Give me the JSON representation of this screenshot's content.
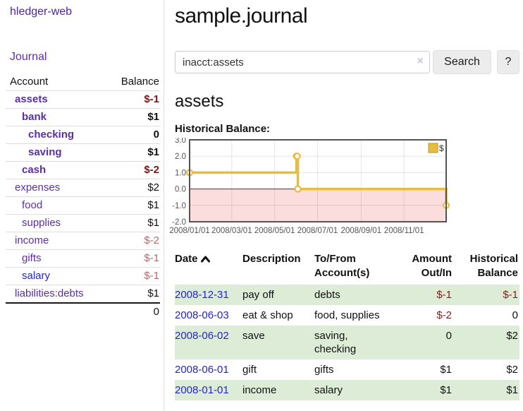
{
  "app": {
    "brand": "hledger-web"
  },
  "sidebar": {
    "journal_link": "Journal",
    "accounts_header": {
      "account": "Account",
      "balance": "Balance"
    },
    "accounts": [
      {
        "name": "assets",
        "balance": "$-1"
      },
      {
        "name": "bank",
        "balance": "$1"
      },
      {
        "name": "checking",
        "balance": "0"
      },
      {
        "name": "saving",
        "balance": "$1"
      },
      {
        "name": "cash",
        "balance": "$-2"
      },
      {
        "name": "expenses",
        "balance": "$2"
      },
      {
        "name": "food",
        "balance": "$1"
      },
      {
        "name": "supplies",
        "balance": "$1"
      },
      {
        "name": "income",
        "balance": "$-2"
      },
      {
        "name": "gifts",
        "balance": "$-1"
      },
      {
        "name": "salary",
        "balance": "$-1"
      },
      {
        "name": "liabilities:debts",
        "balance": "$1"
      }
    ],
    "total": "0"
  },
  "main": {
    "title": "sample.journal",
    "search": {
      "value": "inacct:assets",
      "clear_icon": "×",
      "search_button": "Search",
      "help_button": "?"
    },
    "account_title": "assets",
    "chart_heading": "Historical Balance:"
  },
  "chart_data": {
    "type": "line",
    "title": "Historical Balance:",
    "steps": true,
    "series": [
      {
        "name": "$",
        "color": "#e8bc3d",
        "points": [
          {
            "date": "2008-01-01",
            "x": 0.0,
            "y": 1
          },
          {
            "date": "2008-06-01",
            "x": 0.4164,
            "y": 2
          },
          {
            "date": "2008-06-02",
            "x": 0.4192,
            "y": 2
          },
          {
            "date": "2008-06-03",
            "x": 0.4219,
            "y": 0
          },
          {
            "date": "2008-12-31",
            "x": 1.0,
            "y": -1
          }
        ]
      }
    ],
    "xticks": [
      {
        "label": "2008/01/01",
        "x": 0.0
      },
      {
        "label": "2008/03/01",
        "x": 0.1644
      },
      {
        "label": "2008/05/01",
        "x": 0.3315
      },
      {
        "label": "2008/07/01",
        "x": 0.4986
      },
      {
        "label": "2008/09/01",
        "x": 0.6685
      },
      {
        "label": "2008/11/01",
        "x": 0.8356
      }
    ],
    "yticks": [
      {
        "label": "3.0",
        "v": 3
      },
      {
        "label": "2.0",
        "v": 2
      },
      {
        "label": "1.0",
        "v": 1
      },
      {
        "label": "0.0",
        "v": 0
      },
      {
        "label": "-1.0",
        "v": -1
      },
      {
        "label": "-2.0",
        "v": -2
      }
    ],
    "ylim": [
      -2,
      3
    ],
    "grid": true,
    "legend": {
      "label": "$",
      "position": "top-right"
    },
    "negative_fill": "#fcdddd",
    "zero_line_color": "#8b1a1a",
    "frame_color": "#545454"
  },
  "register": {
    "columns": [
      {
        "line1": "Date",
        "line2": ""
      },
      {
        "line1": "Description",
        "line2": ""
      },
      {
        "line1": "To/From",
        "line2": "Account(s)"
      },
      {
        "line1": "Amount",
        "line2": "Out/In"
      },
      {
        "line1": "Historical",
        "line2": "Balance"
      }
    ],
    "rows": [
      {
        "date": "2008-12-31",
        "description": "pay off",
        "accounts": "debts",
        "amount": "$-1",
        "balance": "$-1"
      },
      {
        "date": "2008-06-03",
        "description": "eat & shop",
        "accounts": "food, supplies",
        "amount": "$-2",
        "balance": "0"
      },
      {
        "date": "2008-06-02",
        "description": "save",
        "accounts": "saving, checking",
        "amount": "0",
        "balance": "$2"
      },
      {
        "date": "2008-06-01",
        "description": "gift",
        "accounts": "gifts",
        "amount": "$1",
        "balance": "$2"
      },
      {
        "date": "2008-01-01",
        "description": "income",
        "accounts": "salary",
        "amount": "$1",
        "balance": "$1"
      }
    ]
  },
  "colors": {
    "link_purple": "#5a2fa3",
    "link_blue": "#2424d0",
    "negative_strong": "#7e1616",
    "negative_muted": "#b26a6e",
    "row_stripe_green": "#ddecd7",
    "chart_line_gold": "#e8bc3d",
    "chart_negative_pink": "#fcdddd",
    "chart_zero_line": "#8b1a1a",
    "button_gray": "#ececec"
  }
}
